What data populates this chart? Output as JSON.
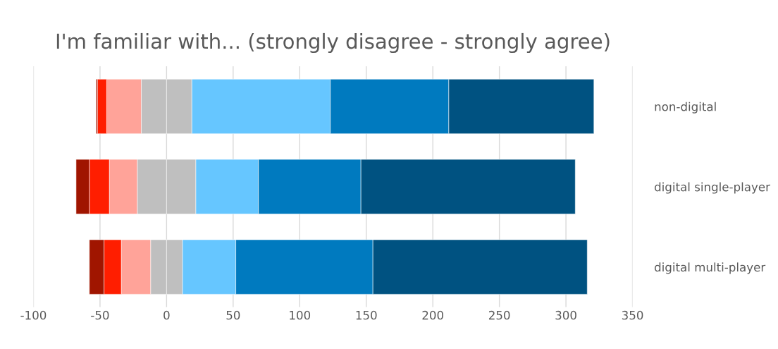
{
  "chart_data": {
    "type": "bar",
    "orientation": "horizontal",
    "stacked": true,
    "title": "I'm familiar with... (strongly disagree - strongly agree)",
    "categories": [
      "non-digital",
      "digital single-player",
      "digital multi-player"
    ],
    "series": [
      {
        "color": "#bfbfbf",
        "values": [
          -19,
          -22,
          -12
        ]
      },
      {
        "color": "#bfbfbf",
        "values": [
          19,
          22,
          12
        ]
      },
      {
        "color": "#ffa399",
        "values": [
          -26,
          -21,
          -22
        ]
      },
      {
        "color": "#66c6ff",
        "values": [
          104,
          47,
          40
        ]
      },
      {
        "color": "#ff1e00",
        "values": [
          -7,
          -15,
          -13
        ]
      },
      {
        "color": "#007abf",
        "values": [
          89,
          77,
          103
        ]
      },
      {
        "color": "#a01500",
        "values": [
          -1,
          -10,
          -11
        ]
      },
      {
        "color": "#005281",
        "values": [
          109,
          161,
          161
        ]
      }
    ],
    "xlim": [
      -100,
      350
    ],
    "xticks": [
      -100,
      -50,
      0,
      50,
      100,
      150,
      200,
      250,
      300,
      350
    ],
    "grid": "x"
  }
}
